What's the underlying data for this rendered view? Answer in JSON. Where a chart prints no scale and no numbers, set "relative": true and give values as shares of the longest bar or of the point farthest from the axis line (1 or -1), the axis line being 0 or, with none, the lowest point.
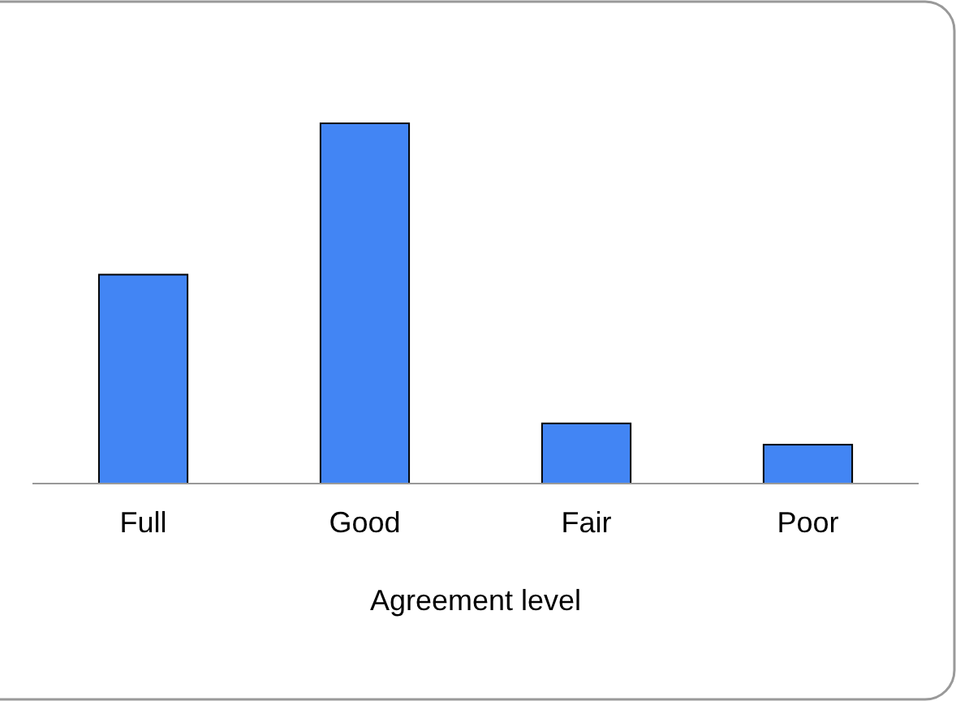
{
  "chart_data": {
    "type": "bar",
    "relative": true,
    "xlabel": "Agreement level",
    "categories": [
      "Full",
      "Good",
      "Fair",
      "Poor"
    ],
    "values": [
      0.58,
      1,
      0.167,
      0.108
    ],
    "color": "#4285f4"
  }
}
